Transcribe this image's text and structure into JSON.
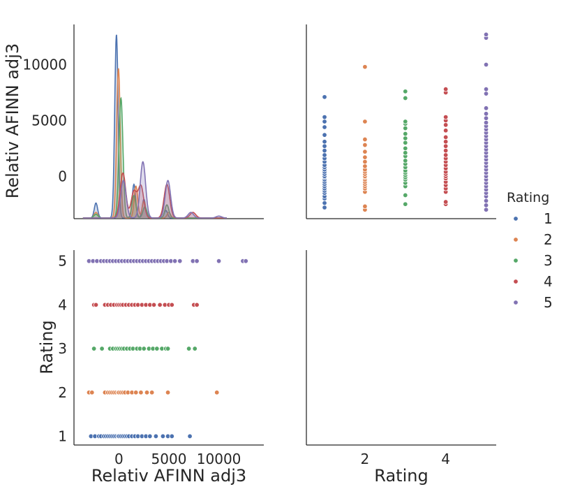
{
  "chart_data": {
    "type": "pairplot",
    "variables": [
      "Relativ AFINN adj3",
      "Rating"
    ],
    "hue": "Rating",
    "colors": {
      "1": "#4c72b0",
      "2": "#dd8452",
      "3": "#55a868",
      "4": "#c44e52",
      "5": "#8172b3"
    },
    "legend": {
      "title": "Rating",
      "entries": [
        "1",
        "2",
        "3",
        "4",
        "5"
      ],
      "position": "right"
    },
    "axes": {
      "afinn": {
        "label": "Relativ AFINN adj3",
        "range": [
          -4500,
          14500
        ],
        "ticks": [
          0,
          5000,
          10000
        ],
        "tick_labels": [
          "0",
          "5000",
          "10000"
        ]
      },
      "afinn_diag_yaxis": {
        "range": [
          -3800,
          13600
        ],
        "ticks": [
          0,
          5000,
          10000
        ],
        "tick_labels": [
          "0",
          "5000",
          "10000"
        ]
      },
      "afinn_yaxis": {
        "range": [
          -3800,
          13600
        ]
      },
      "rating": {
        "label": "Rating",
        "range": [
          0.8,
          5.25
        ],
        "ticks": [
          1,
          2,
          3,
          4,
          5
        ],
        "tick_labels": [
          "1",
          "2",
          "3",
          "4",
          "5"
        ]
      },
      "rating_xaxis": {
        "range": [
          0.55,
          5.25
        ],
        "ticks": [
          2,
          4
        ],
        "tick_labels": [
          "2",
          "4"
        ]
      }
    },
    "kde": [
      {
        "rating": "1",
        "peaks": [
          [
            -2300,
            0.08
          ],
          [
            -250,
            0.98
          ],
          [
            1500,
            0.18
          ],
          [
            2500,
            0.1
          ],
          [
            4700,
            0.04
          ]
        ],
        "width": 170
      },
      {
        "rating": "2",
        "peaks": [
          [
            -2300,
            0.03
          ],
          [
            -50,
            0.8
          ],
          [
            1700,
            0.17
          ],
          [
            2500,
            0.09
          ],
          [
            5000,
            0.03
          ]
        ],
        "width": 180
      },
      {
        "rating": "3",
        "peaks": [
          [
            -2300,
            0.02
          ],
          [
            200,
            0.64
          ],
          [
            1500,
            0.12
          ],
          [
            2600,
            0.06
          ],
          [
            4800,
            0.07
          ]
        ],
        "width": 200
      },
      {
        "rating": "4",
        "peaks": [
          [
            400,
            0.24
          ],
          [
            1500,
            0.14
          ],
          [
            2200,
            0.17
          ],
          [
            4800,
            0.18
          ],
          [
            7400,
            0.03
          ]
        ],
        "width": 280
      },
      {
        "rating": "5",
        "peaks": [
          [
            450,
            0.2
          ],
          [
            2400,
            0.3
          ],
          [
            4900,
            0.2
          ],
          [
            7200,
            0.03
          ],
          [
            10000,
            0.01
          ]
        ],
        "width": 270
      }
    ],
    "points": {
      "1": [
        -2800,
        -2400,
        -2000,
        -1800,
        -1500,
        -1300,
        -1100,
        -900,
        -700,
        -500,
        -300,
        -100,
        0,
        200,
        400,
        600,
        800,
        1000,
        1300,
        1600,
        1900,
        2300,
        2700,
        3100,
        3700,
        4400,
        4900,
        5300,
        7100
      ],
      "2": [
        -3000,
        -2700,
        -1400,
        -1100,
        -900,
        -700,
        -500,
        -300,
        -100,
        0,
        200,
        400,
        600,
        900,
        1300,
        1700,
        2200,
        2800,
        3300,
        4900,
        9800
      ],
      "3": [
        -2500,
        -1700,
        -900,
        -600,
        -300,
        -100,
        100,
        300,
        500,
        800,
        1100,
        1400,
        1800,
        2100,
        2500,
        3000,
        3400,
        3800,
        4300,
        4700,
        4900,
        7000,
        7600
      ],
      "4": [
        -2500,
        -2300,
        -1400,
        -1100,
        -800,
        -500,
        -200,
        0,
        200,
        400,
        700,
        1000,
        1300,
        1600,
        1900,
        2300,
        2700,
        3100,
        3500,
        4100,
        4600,
        5000,
        5300,
        7500,
        7800
      ],
      "5": [
        -3000,
        -2600,
        -2200,
        -1800,
        -1500,
        -1200,
        -900,
        -600,
        -300,
        0,
        300,
        600,
        900,
        1200,
        1500,
        1800,
        2100,
        2400,
        2700,
        3000,
        3300,
        3600,
        3900,
        4200,
        4500,
        4800,
        5200,
        5600,
        6100,
        7400,
        7800,
        10000,
        12400,
        12700
      ]
    }
  }
}
